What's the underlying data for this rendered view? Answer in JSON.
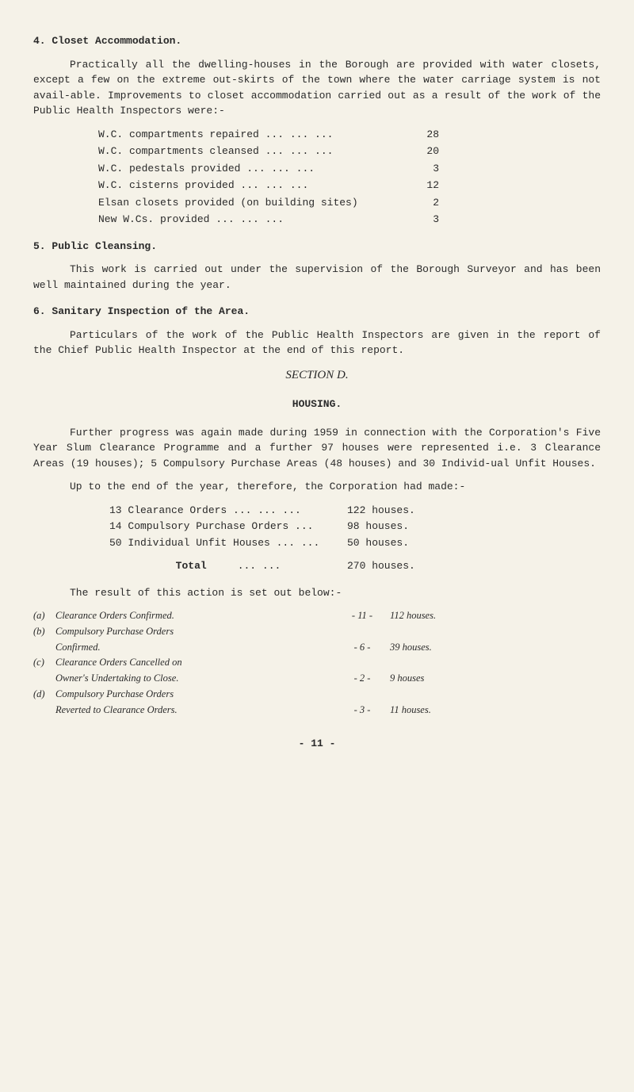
{
  "h4": "4. Closet Accommodation.",
  "p4a": "Practically all the dwelling-houses in the Borough are provided with water closets, except a few on the extreme out-skirts of the town where the water carriage system is not avail-able. Improvements to closet accommodation carried out as a result of the work of the Public Health Inspectors were:-",
  "wc": [
    {
      "label": "W.C. compartments repaired ...    ...    ...",
      "value": "28"
    },
    {
      "label": "W.C. compartments cleansed ...    ...    ...",
      "value": "20"
    },
    {
      "label": "W.C. pedestals provided    ...    ...    ...",
      "value": "3"
    },
    {
      "label": "W.C. cisterns provided     ...    ...    ...",
      "value": "12"
    },
    {
      "label": "Elsan closets provided (on building sites)",
      "value": "2"
    },
    {
      "label": "New W.Cs. provided         ...    ...    ...",
      "value": "3"
    }
  ],
  "h5": "5. Public Cleansing.",
  "p5": "This work is carried out under the supervision of the Borough Surveyor and has been well maintained during the year.",
  "h6": "6. Sanitary Inspection of the Area.",
  "p6": "Particulars of the work of the Public Health Inspectors are given in the report of the Chief Public Health Inspector at the end of this report.",
  "sectionD": "SECTION D.",
  "housing": "HOUSING.",
  "pHousing1": "Further progress was again made during 1959 in connection with the Corporation's Five Year Slum Clearance Programme and a further 97 houses were represented i.e. 3 Clearance Areas (19 houses); 5 Compulsory Purchase Areas (48 houses) and 30 Individ-ual Unfit Houses.",
  "pHousing2": "Up to the end of the year, therefore, the Corporation had made:-",
  "orders": [
    {
      "label": "13 Clearance Orders ...    ... ...",
      "value": "122 houses."
    },
    {
      "label": "14 Compulsory Purchase Orders  ...",
      "value": " 98 houses."
    },
    {
      "label": "50 Individual Unfit Houses ... ...",
      "value": " 50 houses."
    }
  ],
  "totalLabel": "Total",
  "totalDots": "... ...",
  "totalValue": "270 houses.",
  "pResult": "The result of this action is set out below:-",
  "clauses": [
    {
      "letter": "(a)",
      "label": "Clearance Orders Confirmed.",
      "dash": "- 11 -",
      "value": "112 houses."
    },
    {
      "letter": "(b)",
      "label": "Compulsory Purchase Orders",
      "dash": "",
      "value": ""
    },
    {
      "letter": "",
      "label": "Confirmed.",
      "dash": "-  6 -",
      "value": " 39 houses."
    },
    {
      "letter": "(c)",
      "label": "Clearance Orders Cancelled on",
      "dash": "",
      "value": ""
    },
    {
      "letter": "",
      "label": "Owner's Undertaking to Close.",
      "dash": "-  2 -",
      "value": "  9 houses"
    },
    {
      "letter": "(d)",
      "label": "Compulsory Purchase Orders",
      "dash": "",
      "value": ""
    },
    {
      "letter": "",
      "label": "Reverted to Clearance Orders.",
      "dash": "-  3 -",
      "value": " 11 houses."
    }
  ],
  "pageNum": "- 11 -"
}
